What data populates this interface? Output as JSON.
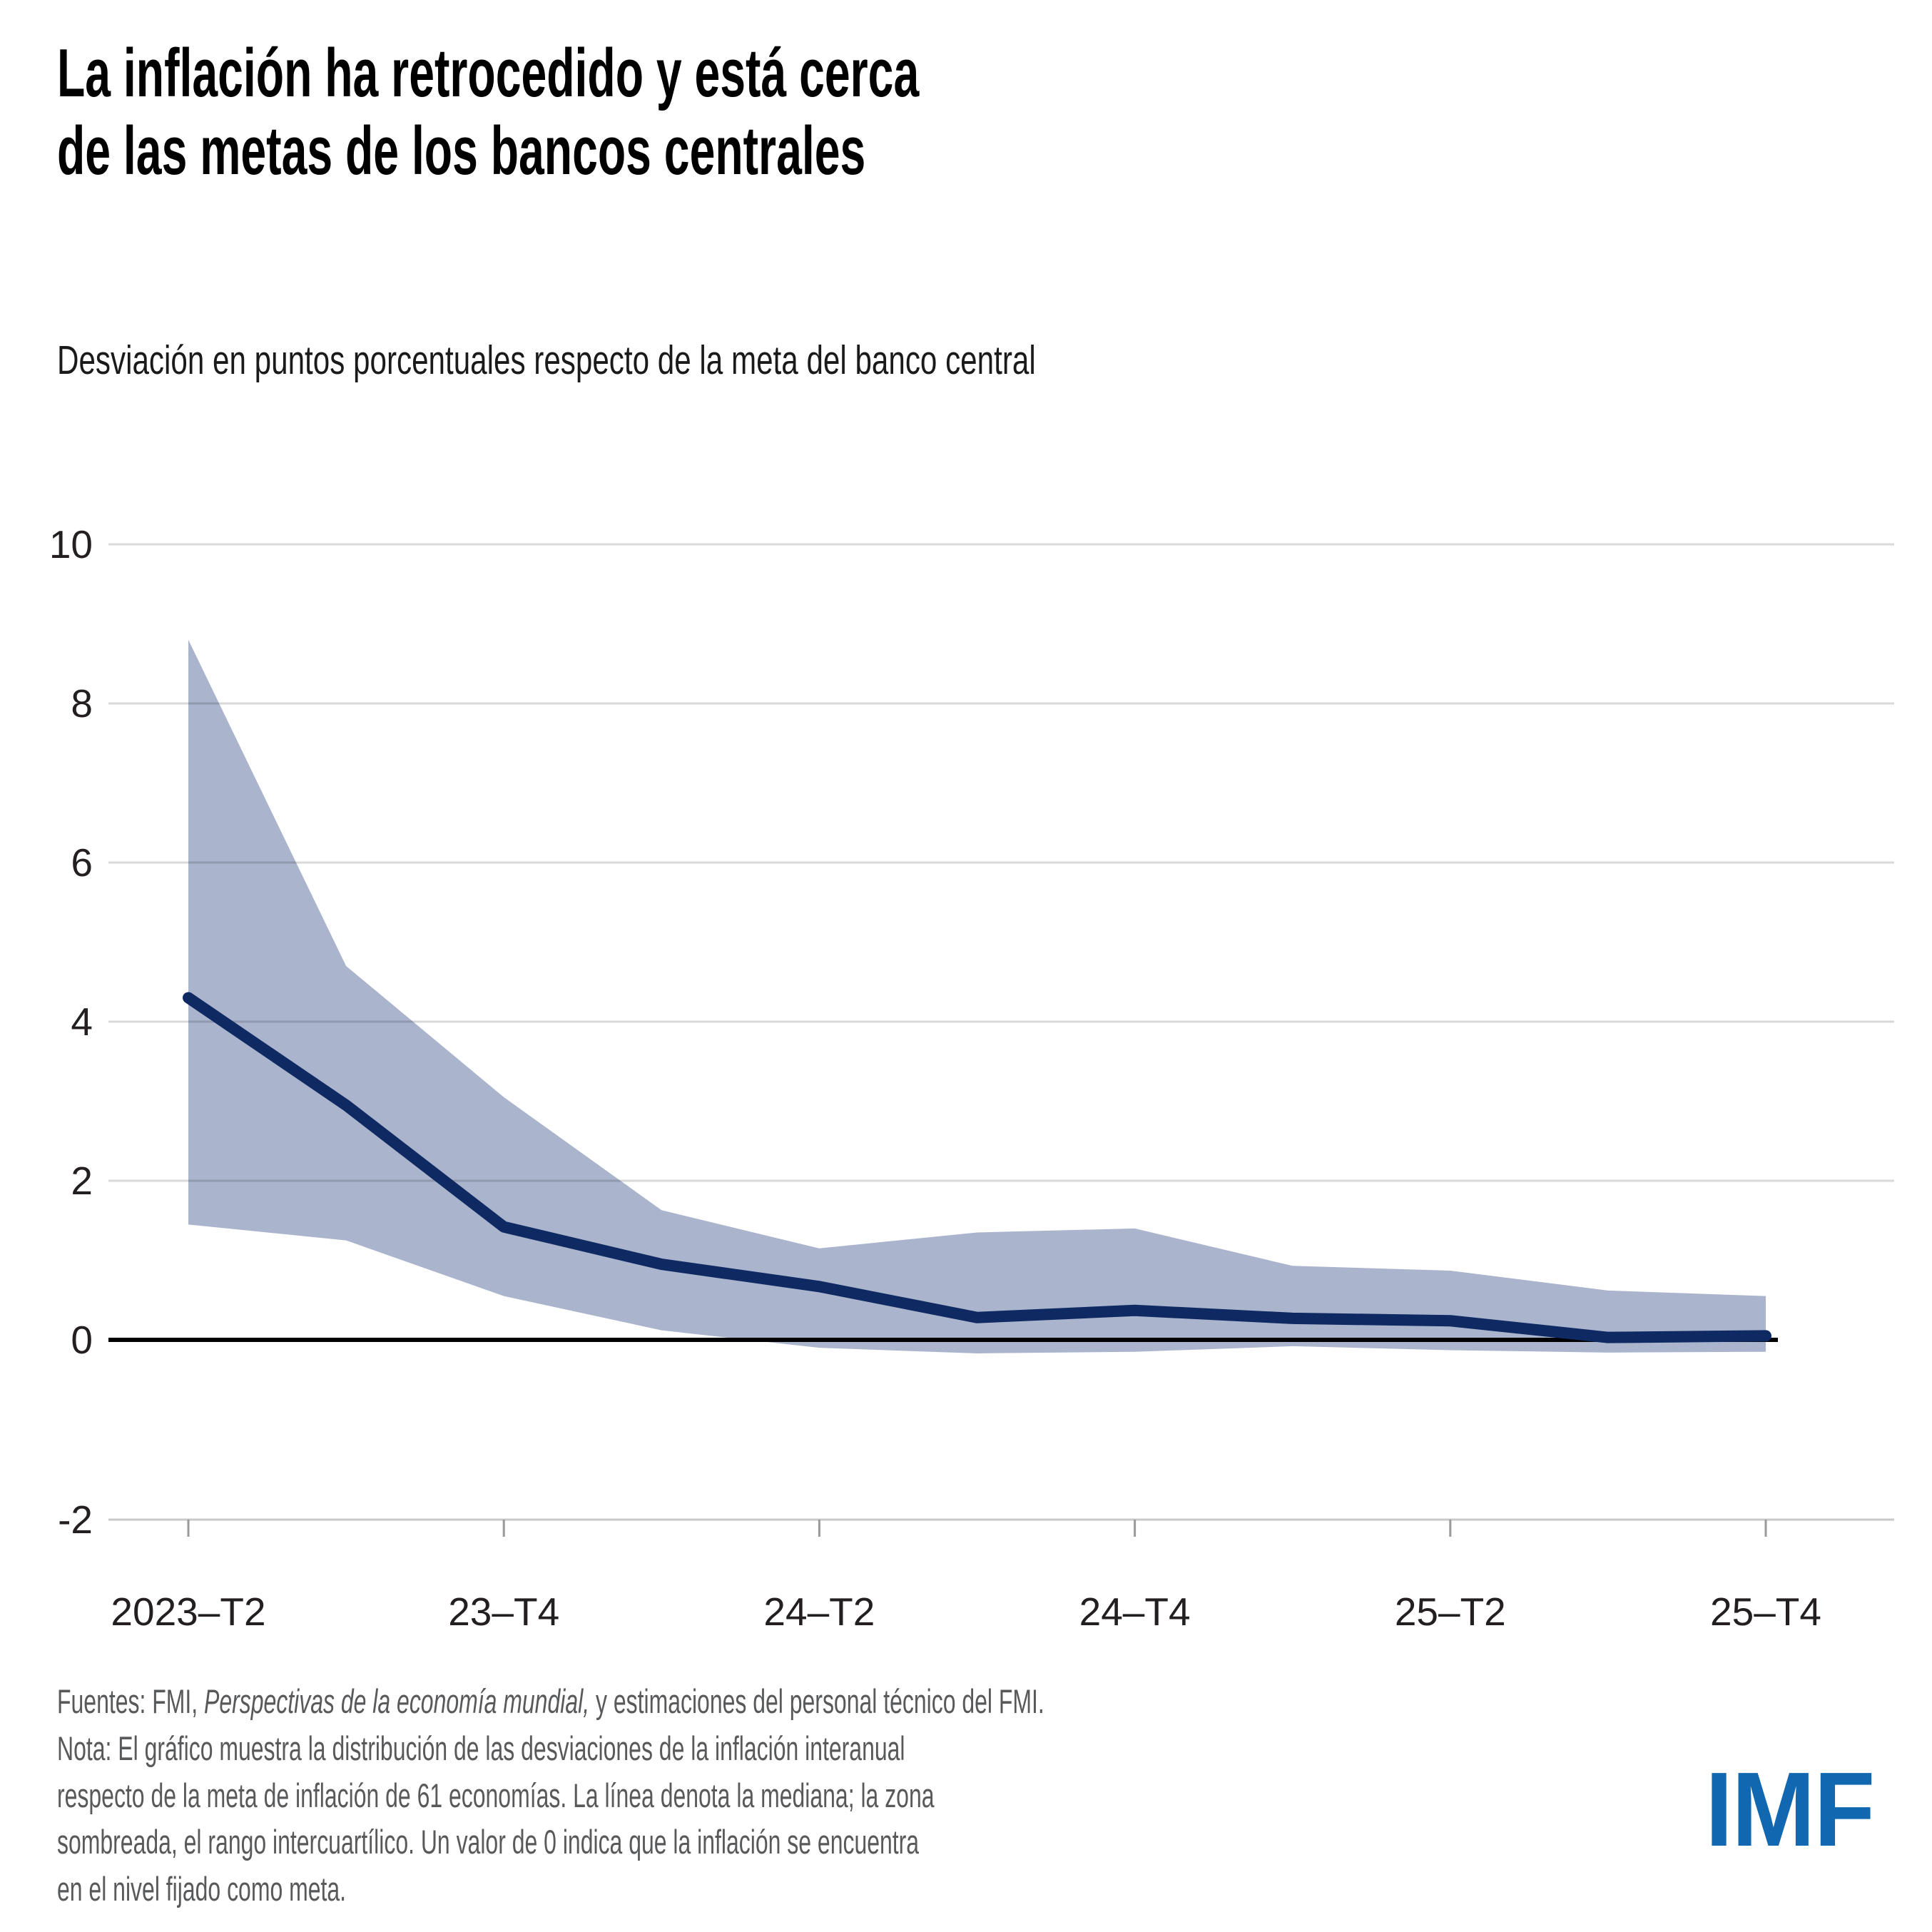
{
  "header": {
    "title_line1": "La inflación ha retrocedido y está cerca",
    "title_line2": "de las metas de los bancos centrales",
    "subtitle": "Desviación en puntos porcentuales respecto de la meta del banco central"
  },
  "chart_data": {
    "type": "line",
    "description": "Línea de mediana con banda sombreada del rango intercuartílico",
    "quarters": [
      "2023-T2",
      "2023-T3",
      "2023-T4",
      "2024-T1",
      "2024-T2",
      "2024-T3",
      "2024-T4",
      "2025-T1",
      "2025-T2",
      "2025-T3",
      "2025-T4"
    ],
    "series": [
      {
        "name": "mediana",
        "values": [
          4.3,
          2.95,
          1.42,
          0.95,
          0.67,
          0.28,
          0.37,
          0.27,
          0.24,
          0.03,
          0.05
        ]
      },
      {
        "name": "cuartil-superior",
        "values": [
          8.8,
          4.7,
          3.05,
          1.63,
          1.15,
          1.35,
          1.4,
          0.93,
          0.87,
          0.62,
          0.55
        ]
      },
      {
        "name": "cuartil-inferior",
        "values": [
          1.45,
          1.25,
          0.55,
          0.12,
          -0.1,
          -0.17,
          -0.15,
          -0.08,
          -0.13,
          -0.16,
          -0.15
        ]
      }
    ],
    "x_axis": {
      "tick_indices": [
        0,
        2,
        4,
        6,
        8,
        10
      ],
      "tick_labels": [
        "2023–T2",
        "23–T4",
        "24–T2",
        "24–T4",
        "25–T2",
        "25–T4"
      ]
    },
    "y_axis": {
      "tick_values": [
        10,
        8,
        6,
        4,
        2,
        0,
        -2
      ],
      "tick_labels": [
        "10",
        "8",
        "6",
        "4",
        "2",
        "0",
        "-2"
      ],
      "gridline_values": [
        10,
        8,
        6,
        4,
        2
      ],
      "ylim": [
        -2,
        10
      ]
    },
    "grid": true,
    "legend": "none",
    "colors": {
      "median_line": "#0f2a63",
      "band": "#aab4cc",
      "zero_line": "#000000",
      "gridline": "rgba(0,0,0,0.15)",
      "axis_line": "#c8c8c8",
      "tick": "#9a9a9a",
      "axis_text": "#231f20"
    }
  },
  "footer": {
    "source_prefix": "Fuentes: FMI, ",
    "source_italic": "Perspectivas de la economía mundial,",
    "source_suffix": " y estimaciones del personal técnico del FMI.",
    "note_lines": [
      "Nota: El gráfico muestra la distribución de las desviaciones de la inflación interanual",
      "respecto de la meta de inflación de 61 economías. La línea denota la mediana; la zona",
      "sombreada, el rango intercuartílico. Un valor de 0 indica que la inflación se encuentra",
      "en el nivel fijado como meta."
    ],
    "logo": "IMF",
    "logo_color": "#1268b0"
  }
}
